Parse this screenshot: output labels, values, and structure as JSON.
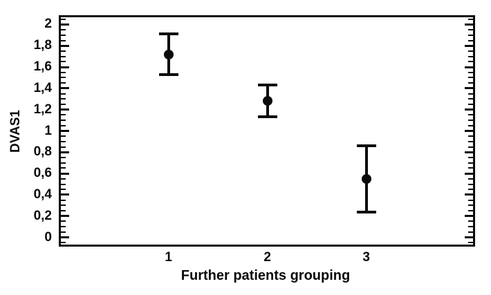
{
  "chart_data": {
    "type": "scatter",
    "subtype": "means-with-error-bars",
    "title": "",
    "xlabel": "Further patients grouping",
    "ylabel": "DVAS1",
    "categories": [
      "1",
      "2",
      "3"
    ],
    "x": [
      1,
      2,
      3
    ],
    "series": [
      {
        "name": "DVAS1",
        "means": [
          1.72,
          1.28,
          0.55
        ],
        "lower": [
          1.53,
          1.13,
          0.24
        ],
        "upper": [
          1.91,
          1.43,
          0.86
        ]
      }
    ],
    "y_major_ticks": [
      0,
      0.2,
      0.4,
      0.6,
      0.8,
      1,
      1.2,
      1.4,
      1.6,
      1.8,
      2
    ],
    "y_tick_labels": [
      "0",
      "0,2",
      "0,4",
      "0,6",
      "0,8",
      "1",
      "1,2",
      "1,4",
      "1,6",
      "1,8",
      "2"
    ],
    "y_minor_step": 0.05,
    "xlim": [
      -0.11,
      4.1
    ],
    "ylim": [
      -0.087,
      2.087
    ],
    "grid": false,
    "legend": null,
    "frame": "box",
    "marker": "filled-circle",
    "colors": {
      "foreground": "#0b0b0b",
      "background": "#ffffff"
    }
  }
}
